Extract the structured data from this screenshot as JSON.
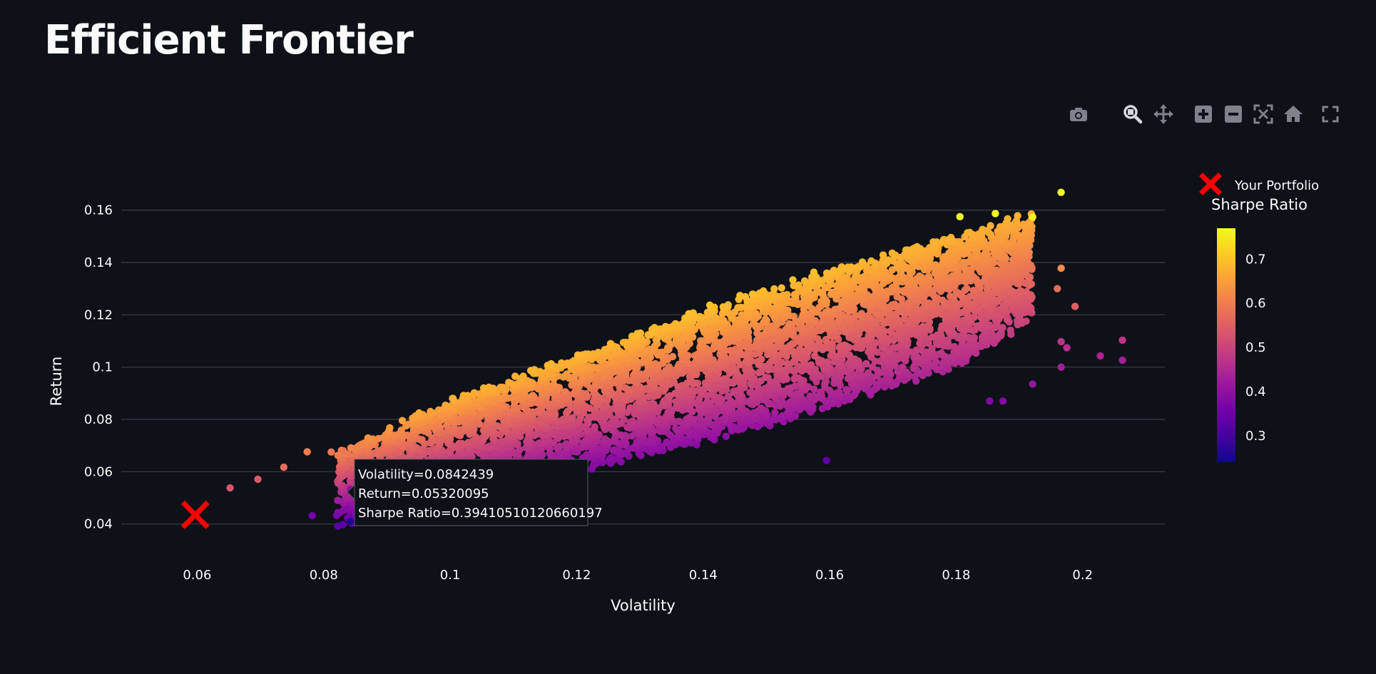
{
  "page": {
    "title": "Efficient Frontier"
  },
  "modebar": {
    "buttons": [
      {
        "name": "download-png",
        "icon": "camera-icon"
      },
      {
        "name": "zoom",
        "icon": "zoom-icon",
        "active": true
      },
      {
        "name": "pan",
        "icon": "pan-icon"
      },
      {
        "name": "zoom-in",
        "icon": "plus-square-icon"
      },
      {
        "name": "zoom-out",
        "icon": "minus-square-icon"
      },
      {
        "name": "autoscale",
        "icon": "autoscale-icon"
      },
      {
        "name": "reset-axes",
        "icon": "home-icon"
      },
      {
        "name": "fullscreen",
        "icon": "fullscreen-icon"
      }
    ]
  },
  "colors": {
    "background": "#0e1117",
    "grid": "#3a3f4b",
    "text": "#fafafa",
    "portfolio_marker": "#ff0000",
    "colorscale": [
      "#0d0887",
      "#46039f",
      "#7201a8",
      "#9c179e",
      "#bd3786",
      "#d8576b",
      "#ed7953",
      "#fb9f3a",
      "#fdca26",
      "#f0f921"
    ]
  },
  "chart_data": {
    "type": "scatter",
    "xlabel": "Volatility",
    "ylabel": "Return",
    "xlim": [
      0.048,
      0.213
    ],
    "ylim": [
      0.029,
      0.17
    ],
    "xticks": [
      0.06,
      0.08,
      0.1,
      0.12,
      0.14,
      0.16,
      0.18,
      0.2
    ],
    "xtick_labels": [
      "0.06",
      "0.08",
      "0.1",
      "0.12",
      "0.14",
      "0.16",
      "0.18",
      "0.2"
    ],
    "yticks": [
      0.04,
      0.06,
      0.08,
      0.1,
      0.12,
      0.14,
      0.16
    ],
    "ytick_labels": [
      "0.04",
      "0.06",
      "0.08",
      "0.1",
      "0.12",
      "0.14",
      "0.16"
    ],
    "grid": {
      "x": false,
      "y": true
    },
    "color_by": "Sharpe Ratio",
    "colorbar": {
      "title": "Sharpe Ratio",
      "range": [
        0.24,
        0.77
      ],
      "ticks": [
        0.3,
        0.4,
        0.5,
        0.6,
        0.7
      ],
      "tick_labels": [
        "0.3",
        "0.4",
        "0.5",
        "0.6",
        "0.7"
      ],
      "colorscale": "Plasma"
    },
    "frontier_cloud": {
      "description_points": "simulated portfolios",
      "x_range": [
        0.06,
        0.205
      ],
      "y_range": [
        0.04,
        0.167
      ],
      "lower_edge": [
        [
          0.084,
          0.04
        ],
        [
          0.1,
          0.051
        ],
        [
          0.12,
          0.061
        ],
        [
          0.14,
          0.071
        ],
        [
          0.16,
          0.085
        ],
        [
          0.18,
          0.1
        ],
        [
          0.19,
          0.115
        ]
      ],
      "upper_edge": [
        [
          0.06,
          0.045
        ],
        [
          0.08,
          0.065
        ],
        [
          0.1,
          0.087
        ],
        [
          0.12,
          0.104
        ],
        [
          0.14,
          0.122
        ],
        [
          0.16,
          0.137
        ],
        [
          0.18,
          0.15
        ],
        [
          0.192,
          0.158
        ]
      ]
    },
    "points": [
      {
        "x": 0.0652,
        "y": 0.0538,
        "sharpe": 0.53
      },
      {
        "x": 0.0696,
        "y": 0.0571,
        "sharpe": 0.54
      },
      {
        "x": 0.0737,
        "y": 0.0617,
        "sharpe": 0.57
      },
      {
        "x": 0.0774,
        "y": 0.0676,
        "sharpe": 0.6
      },
      {
        "x": 0.0812,
        "y": 0.0675,
        "sharpe": 0.59
      },
      {
        "x": 0.0831,
        "y": 0.068,
        "sharpe": 0.59
      },
      {
        "x": 0.0782,
        "y": 0.0432,
        "sharpe": 0.36
      },
      {
        "x": 0.0842,
        "y": 0.041,
        "sharpe": 0.26
      },
      {
        "x": 0.0842439,
        "y": 0.05320095,
        "sharpe": 0.39410510120660197
      },
      {
        "x": 0.1806,
        "y": 0.1575,
        "sharpe": 0.77
      },
      {
        "x": 0.1862,
        "y": 0.1587,
        "sharpe": 0.77
      },
      {
        "x": 0.1921,
        "y": 0.1574,
        "sharpe": 0.76
      },
      {
        "x": 0.1966,
        "y": 0.1668,
        "sharpe": 0.77
      },
      {
        "x": 0.1966,
        "y": 0.1378,
        "sharpe": 0.62
      },
      {
        "x": 0.196,
        "y": 0.13,
        "sharpe": 0.57
      },
      {
        "x": 0.1988,
        "y": 0.1232,
        "sharpe": 0.55
      },
      {
        "x": 0.1966,
        "y": 0.1097,
        "sharpe": 0.47
      },
      {
        "x": 0.1975,
        "y": 0.1074,
        "sharpe": 0.46
      },
      {
        "x": 0.2028,
        "y": 0.1043,
        "sharpe": 0.44
      },
      {
        "x": 0.2063,
        "y": 0.1026,
        "sharpe": 0.43
      },
      {
        "x": 0.2063,
        "y": 0.1103,
        "sharpe": 0.47
      },
      {
        "x": 0.1966,
        "y": 0.1,
        "sharpe": 0.43
      },
      {
        "x": 0.1921,
        "y": 0.0935,
        "sharpe": 0.41
      },
      {
        "x": 0.1874,
        "y": 0.087,
        "sharpe": 0.38
      },
      {
        "x": 0.1853,
        "y": 0.087,
        "sharpe": 0.38
      },
      {
        "x": 0.1595,
        "y": 0.0643,
        "sharpe": 0.33
      }
    ],
    "series": [
      {
        "name": "Your Portfolio",
        "marker": "x",
        "color": "#ff0000",
        "x": 0.0597,
        "y": 0.0435
      }
    ],
    "legend_position": "top-right",
    "hover": {
      "lines": [
        "Volatility=0.0842439",
        "Return=0.05320095",
        "Sharpe Ratio=0.39410510120660197"
      ]
    }
  }
}
